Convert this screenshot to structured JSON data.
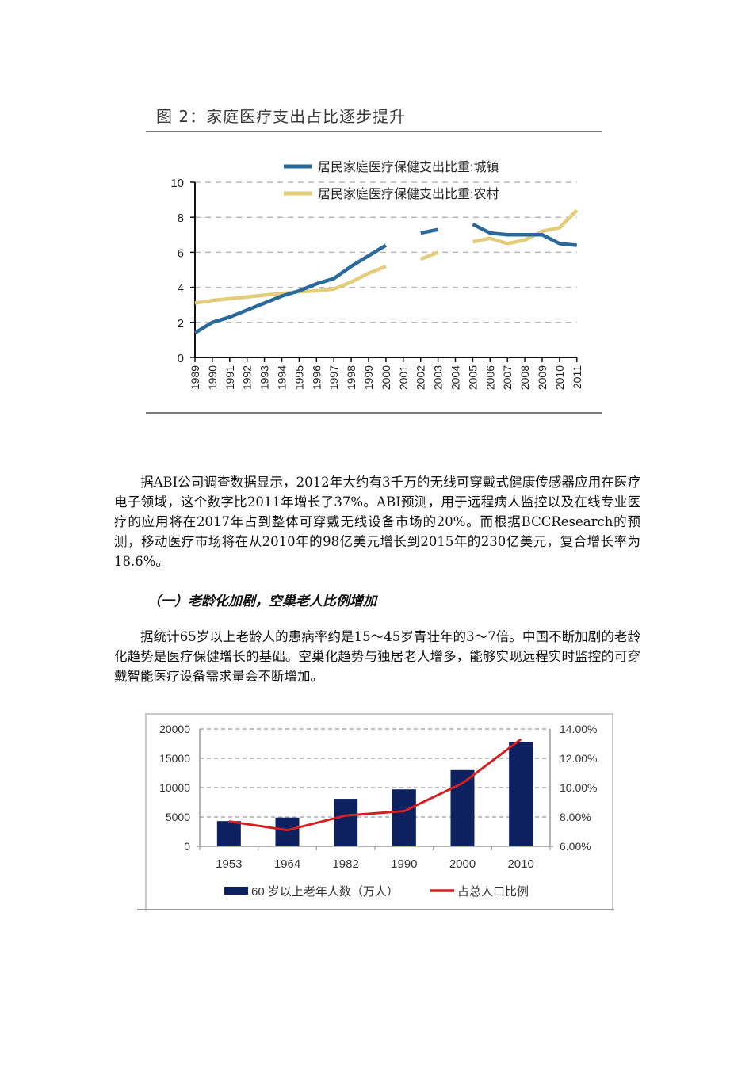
{
  "figure2": {
    "title": "图 2：家庭医疗支出占比逐步提升"
  },
  "paragraph1": "据ABI公司调查数据显示，2012年大约有3千万的无线可穿戴式健康传感器应用在医疗电子领域，这个数字比2011年增长了37%。ABI预测，用于远程病人监控以及在线专业医疗的应用将在2017年占到整体可穿戴无线设备市场的20%。而根据BCCResearch的预测，移动医疗市场将在从2010年的98亿美元增长到2015年的230亿美元，复合增长率为18.6%。",
  "section_heading": "（一）老龄化加剧，空巢老人比例增加",
  "paragraph2": "据统计65岁以上老龄人的患病率约是15～45岁青壮年的3～7倍。中国不断加剧的老龄化趋势是医疗保健增长的基础。空巢化趋势与独居老人增多，能够实现远程实时监控的可穿戴智能医疗设备需求量会不断增加。",
  "colors": {
    "urban": "#2a6a9a",
    "rural": "#e3cc7a",
    "bars": "#0d2060",
    "ratio_line": "#d42020",
    "grid": "#b8b8b8"
  },
  "chart_data": [
    {
      "type": "line",
      "title": "图 2：家庭医疗支出占比逐步提升",
      "xlabel": "",
      "ylabel": "",
      "ylim": [
        0,
        10
      ],
      "yticks": [
        0,
        2,
        4,
        6,
        8,
        10
      ],
      "grid": true,
      "legend_position": "top-center",
      "x": [
        1989,
        1990,
        1991,
        1992,
        1993,
        1994,
        1995,
        1996,
        1997,
        1998,
        1999,
        2000,
        2001,
        2002,
        2003,
        2004,
        2005,
        2006,
        2007,
        2008,
        2009,
        2010,
        2011
      ],
      "series": [
        {
          "name": "居民家庭医疗保健支出比重:城镇",
          "values": [
            1.4,
            2.0,
            2.3,
            2.7,
            3.1,
            3.5,
            3.8,
            4.2,
            4.5,
            5.2,
            5.8,
            6.4,
            null,
            7.1,
            7.3,
            null,
            7.6,
            7.1,
            7.0,
            7.0,
            7.0,
            6.5,
            6.4
          ]
        },
        {
          "name": "居民家庭医疗保健支出比重:农村",
          "values": [
            3.1,
            3.25,
            3.35,
            3.45,
            3.55,
            3.65,
            3.75,
            3.8,
            3.9,
            4.3,
            4.8,
            5.2,
            null,
            5.6,
            6.0,
            null,
            6.6,
            6.8,
            6.5,
            6.7,
            7.2,
            7.4,
            8.4
          ]
        }
      ]
    },
    {
      "type": "bar",
      "title": "",
      "categories": [
        "1953",
        "1964",
        "1982",
        "1990",
        "2000",
        "2010"
      ],
      "ylim": [
        0,
        20000
      ],
      "yticks": [
        0,
        5000,
        10000,
        15000,
        20000
      ],
      "y2lim": [
        6,
        14
      ],
      "y2ticks": [
        "6.00%",
        "8.00%",
        "10.00%",
        "12.00%",
        "14.00%"
      ],
      "grid": true,
      "legend_position": "bottom",
      "series": [
        {
          "name": "60 岁以上老年人数（万人）",
          "type": "bar",
          "axis": "left",
          "values": [
            4300,
            4900,
            8100,
            9700,
            13000,
            17800
          ]
        },
        {
          "name": "占总人口比例",
          "type": "line",
          "axis": "right",
          "values": [
            7.7,
            7.1,
            8.1,
            8.4,
            10.3,
            13.3
          ]
        }
      ]
    }
  ]
}
